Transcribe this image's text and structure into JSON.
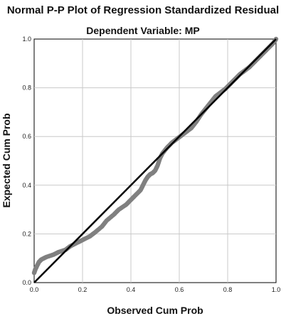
{
  "chart_data": {
    "type": "scatter",
    "title": "Normal P-P Plot of Regression Standardized Residual",
    "subtitle": "Dependent Variable: MP",
    "xlabel": "Observed Cum Prob",
    "ylabel": "Expected Cum Prob",
    "xlim": [
      0.0,
      1.0
    ],
    "ylim": [
      0.0,
      1.0
    ],
    "x_ticks": [
      "0.0",
      "0.2",
      "0.4",
      "0.6",
      "0.8",
      "1.0"
    ],
    "y_ticks": [
      "0.0",
      "0.2",
      "0.4",
      "0.6",
      "0.8",
      "1.0"
    ],
    "grid": true,
    "reference_line": [
      [
        0.0,
        0.0
      ],
      [
        1.0,
        1.0
      ]
    ],
    "point_color": "#808080",
    "line_color": "#000000",
    "series": [
      {
        "x": [
          0.0,
          0.005,
          0.01,
          0.02,
          0.03,
          0.05,
          0.08,
          0.1,
          0.13,
          0.15,
          0.18,
          0.2,
          0.23,
          0.25,
          0.28,
          0.3,
          0.33,
          0.35,
          0.38,
          0.4,
          0.42,
          0.44,
          0.45,
          0.46,
          0.47,
          0.48,
          0.49,
          0.5,
          0.51,
          0.52,
          0.53,
          0.55,
          0.57,
          0.59,
          0.61,
          0.63,
          0.65,
          0.67,
          0.69,
          0.71,
          0.73,
          0.75,
          0.77,
          0.79,
          0.81,
          0.83,
          0.85,
          0.87,
          0.89,
          0.91,
          0.93,
          0.95,
          0.97,
          0.99,
          1.0
        ],
        "y": [
          0.04,
          0.055,
          0.065,
          0.085,
          0.095,
          0.105,
          0.115,
          0.125,
          0.135,
          0.15,
          0.165,
          0.175,
          0.19,
          0.205,
          0.23,
          0.255,
          0.28,
          0.3,
          0.32,
          0.34,
          0.36,
          0.38,
          0.4,
          0.42,
          0.435,
          0.445,
          0.45,
          0.46,
          0.48,
          0.51,
          0.53,
          0.555,
          0.575,
          0.59,
          0.605,
          0.62,
          0.635,
          0.66,
          0.69,
          0.715,
          0.74,
          0.765,
          0.78,
          0.795,
          0.815,
          0.835,
          0.855,
          0.87,
          0.885,
          0.905,
          0.925,
          0.945,
          0.965,
          0.985,
          1.0
        ]
      }
    ]
  }
}
